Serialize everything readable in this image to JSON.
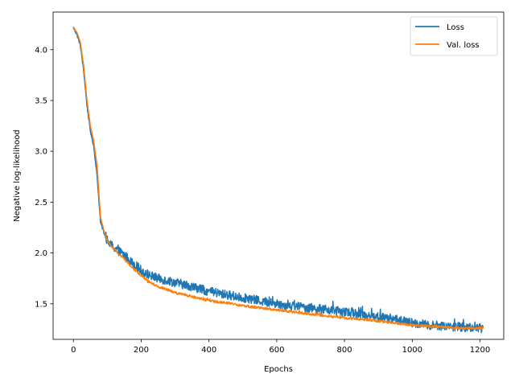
{
  "chart_data": {
    "type": "line",
    "title": "",
    "xlabel": "Epochs",
    "ylabel": "Negative log-likelihood",
    "xlim": [
      -60,
      1270
    ],
    "ylim": [
      1.15,
      4.37
    ],
    "xticks": [
      0,
      200,
      400,
      600,
      800,
      1000,
      1200
    ],
    "yticks": [
      1.5,
      2.0,
      2.5,
      3.0,
      3.5,
      4.0
    ],
    "xtick_labels": [
      "0",
      "200",
      "400",
      "600",
      "800",
      "1000",
      "1200"
    ],
    "ytick_labels": [
      "1.5",
      "2.0",
      "2.5",
      "3.0",
      "3.5",
      "4.0"
    ],
    "grid": false,
    "legend_position": "top-right",
    "series": [
      {
        "name": "Loss",
        "color": "#1f77b4",
        "x_range": [
          0,
          1210
        ],
        "points": [
          [
            0,
            4.22
          ],
          [
            10,
            4.15
          ],
          [
            20,
            4.05
          ],
          [
            30,
            3.8
          ],
          [
            40,
            3.45
          ],
          [
            50,
            3.2
          ],
          [
            60,
            3.05
          ],
          [
            70,
            2.75
          ],
          [
            80,
            2.3
          ],
          [
            90,
            2.2
          ],
          [
            100,
            2.12
          ],
          [
            110,
            2.08
          ],
          [
            125,
            2.04
          ],
          [
            150,
            1.98
          ],
          [
            175,
            1.9
          ],
          [
            200,
            1.83
          ],
          [
            225,
            1.78
          ],
          [
            250,
            1.75
          ],
          [
            300,
            1.71
          ],
          [
            350,
            1.67
          ],
          [
            400,
            1.62
          ],
          [
            450,
            1.59
          ],
          [
            500,
            1.56
          ],
          [
            550,
            1.53
          ],
          [
            600,
            1.5
          ],
          [
            650,
            1.48
          ],
          [
            700,
            1.46
          ],
          [
            750,
            1.44
          ],
          [
            800,
            1.42
          ],
          [
            850,
            1.4
          ],
          [
            900,
            1.37
          ],
          [
            950,
            1.35
          ],
          [
            1000,
            1.31
          ],
          [
            1050,
            1.29
          ],
          [
            1100,
            1.28
          ],
          [
            1150,
            1.27
          ],
          [
            1210,
            1.26
          ]
        ],
        "noise": 0.045
      },
      {
        "name": "Val. loss",
        "color": "#ff7f0e",
        "x_range": [
          0,
          1210
        ],
        "points": [
          [
            0,
            4.22
          ],
          [
            10,
            4.17
          ],
          [
            20,
            4.08
          ],
          [
            30,
            3.85
          ],
          [
            40,
            3.5
          ],
          [
            50,
            3.25
          ],
          [
            60,
            3.1
          ],
          [
            70,
            2.85
          ],
          [
            80,
            2.35
          ],
          [
            90,
            2.22
          ],
          [
            100,
            2.12
          ],
          [
            110,
            2.08
          ],
          [
            125,
            2.02
          ],
          [
            150,
            1.94
          ],
          [
            175,
            1.85
          ],
          [
            200,
            1.78
          ],
          [
            225,
            1.71
          ],
          [
            250,
            1.67
          ],
          [
            300,
            1.61
          ],
          [
            350,
            1.57
          ],
          [
            400,
            1.53
          ],
          [
            450,
            1.51
          ],
          [
            500,
            1.48
          ],
          [
            550,
            1.46
          ],
          [
            600,
            1.44
          ],
          [
            650,
            1.42
          ],
          [
            700,
            1.4
          ],
          [
            750,
            1.38
          ],
          [
            800,
            1.36
          ],
          [
            850,
            1.35
          ],
          [
            900,
            1.33
          ],
          [
            950,
            1.31
          ],
          [
            1000,
            1.29
          ],
          [
            1050,
            1.28
          ],
          [
            1100,
            1.27
          ],
          [
            1150,
            1.26
          ],
          [
            1210,
            1.26
          ]
        ],
        "noise": 0.012
      }
    ]
  }
}
